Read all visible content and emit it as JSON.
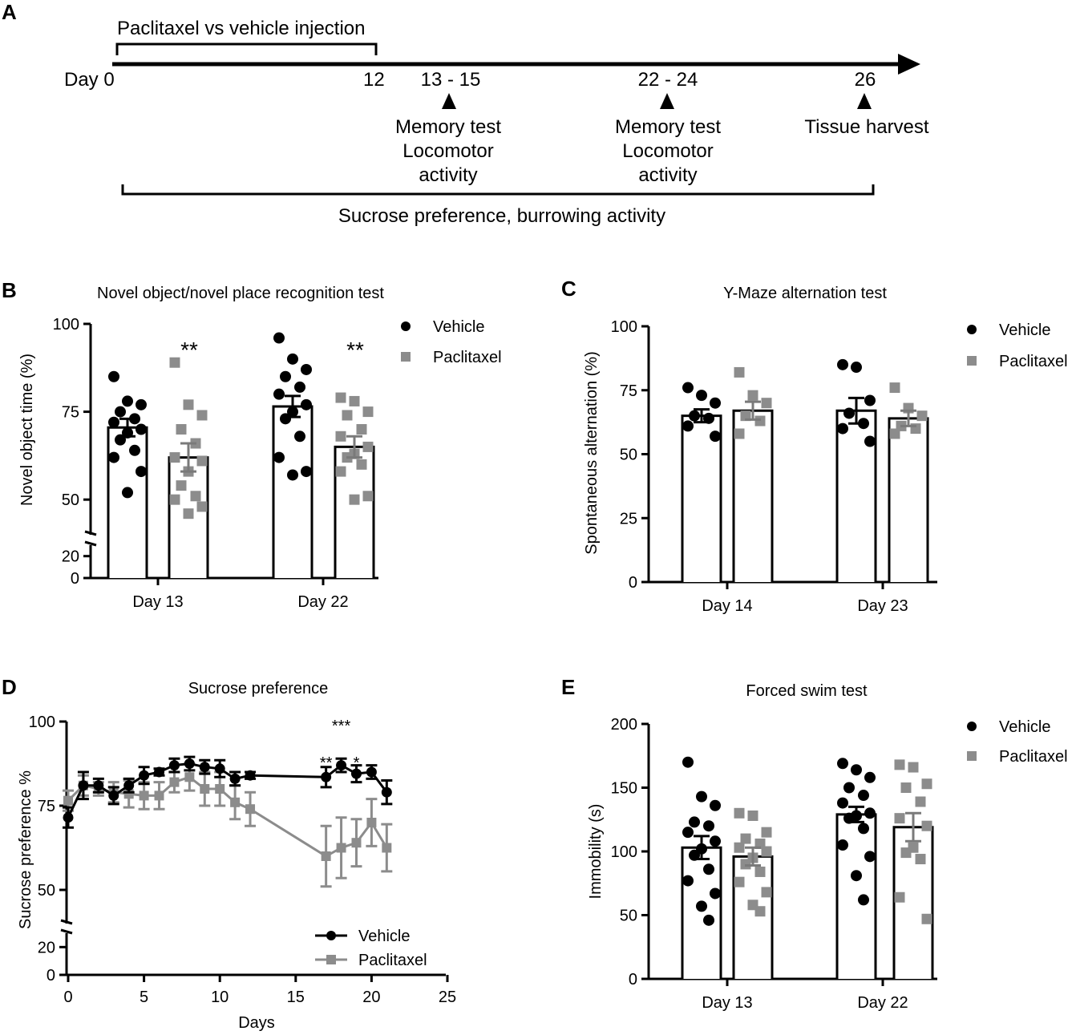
{
  "colors": {
    "vehicle": "#000000",
    "paclitaxel": "#8c8c8c"
  },
  "panel_letters": {
    "A": "A",
    "B": "B",
    "C": "C",
    "D": "D",
    "E": "E"
  },
  "timeline": {
    "top_label": "Paclitaxel vs vehicle injection",
    "day_label": "Day 0",
    "day12": "12",
    "markers": [
      {
        "days": "13 - 15",
        "lines": [
          "Memory test",
          "Locomotor",
          "activity"
        ]
      },
      {
        "days": "22 - 24",
        "lines": [
          "Memory test",
          "Locomotor",
          "activity"
        ]
      },
      {
        "days": "26",
        "lines": [
          "Tissue harvest"
        ]
      }
    ],
    "bottom_label": "Sucrose preference, burrowing activity"
  },
  "chart_data": [
    {
      "panel": "B",
      "type": "bar",
      "title": "Novel object/novel place recognition test",
      "ylabel": "Novel object time (%)",
      "xlabel": "",
      "ylim": [
        0,
        100
      ],
      "y_axis_break": [
        30,
        40
      ],
      "yticks": [
        0,
        20,
        50,
        75,
        100
      ],
      "categories": [
        "Day 13",
        "Day 22"
      ],
      "legend": [
        "Vehicle",
        "Paclitaxel"
      ],
      "significance": [
        "**",
        "**"
      ],
      "series": [
        {
          "name": "Vehicle",
          "values": [
            70.5,
            76.5
          ],
          "sem": [
            2.5,
            3
          ],
          "points": [
            [
              85,
              78,
              77,
              75,
              73,
              72,
              70,
              69,
              67,
              64,
              62,
              58,
              52
            ],
            [
              96,
              90,
              87,
              85,
              82,
              80,
              77,
              75,
              73,
              68,
              62,
              58,
              57
            ]
          ]
        },
        {
          "name": "Paclitaxel",
          "values": [
            62,
            65
          ],
          "sem": [
            4,
            3
          ],
          "points": [
            [
              89,
              77,
              74,
              70,
              66,
              62,
              61,
              58,
              54,
              51,
              50,
              48,
              46
            ],
            [
              79,
              78,
              75,
              74,
              70,
              68,
              65,
              63,
              62,
              60,
              58,
              51,
              50
            ]
          ]
        }
      ]
    },
    {
      "panel": "C",
      "type": "bar",
      "title": "Y-Maze alternation test",
      "ylabel": "Spontaneous alternation  (%)",
      "xlabel": "",
      "ylim": [
        0,
        100
      ],
      "yticks": [
        0,
        25,
        50,
        75,
        100
      ],
      "categories": [
        "Day 14",
        "Day 23"
      ],
      "legend": [
        "Vehicle",
        "Paclitaxel"
      ],
      "series": [
        {
          "name": "Vehicle",
          "values": [
            65,
            67
          ],
          "sem": [
            2.5,
            5
          ],
          "points": [
            [
              76,
              73,
              70,
              65,
              64,
              61,
              57
            ],
            [
              85,
              84,
              71,
              66,
              62,
              60,
              55
            ]
          ]
        },
        {
          "name": "Paclitaxel",
          "values": [
            67,
            64
          ],
          "sem": [
            3.5,
            3
          ],
          "points": [
            [
              82,
              73,
              70,
              65,
              63,
              58
            ],
            [
              76,
              68,
              65,
              61,
              60,
              58
            ]
          ]
        }
      ]
    },
    {
      "panel": "D",
      "type": "line",
      "title": "Sucrose preference",
      "xlabel": "Days",
      "ylabel": "Sucrose preference %",
      "xlim": [
        0,
        25
      ],
      "xticks": [
        0,
        5,
        10,
        15,
        20,
        25
      ],
      "ylim": [
        0,
        100
      ],
      "y_axis_break": [
        30,
        40
      ],
      "yticks": [
        0,
        20,
        50,
        75,
        100
      ],
      "legend": [
        "Vehicle",
        "Paclitaxel"
      ],
      "significance": [
        {
          "x": 17,
          "label": "**"
        },
        {
          "x": 18,
          "label": "***"
        },
        {
          "x": 19,
          "label": "*"
        }
      ],
      "series": [
        {
          "name": "Vehicle",
          "x": [
            0,
            1,
            2,
            3,
            4,
            5,
            6,
            7,
            8,
            9,
            10,
            11,
            12,
            17,
            18,
            19,
            20,
            21
          ],
          "y": [
            71.5,
            81,
            81,
            78,
            81,
            84,
            85,
            87,
            87.5,
            86.5,
            86,
            83,
            84,
            83.5,
            87,
            84.5,
            85,
            79
          ],
          "sem": [
            3,
            4,
            2,
            2.5,
            2,
            2.5,
            1,
            2,
            2,
            2,
            2.5,
            2,
            1,
            3,
            2,
            2.5,
            2,
            3.5
          ]
        },
        {
          "name": "Paclitaxel",
          "x": [
            0,
            1,
            2,
            3,
            4,
            5,
            6,
            7,
            8,
            9,
            10,
            11,
            12,
            17,
            18,
            19,
            20,
            21
          ],
          "y": [
            76.5,
            81,
            80,
            79,
            78.5,
            78,
            78,
            82,
            83.5,
            80,
            80,
            76,
            74,
            60,
            62.5,
            64,
            70,
            62.5
          ],
          "sem": [
            3,
            3,
            2,
            3,
            4,
            4,
            4,
            3,
            4,
            5,
            5,
            5,
            5,
            9,
            9,
            7,
            7,
            7
          ]
        }
      ]
    },
    {
      "panel": "E",
      "type": "bar",
      "title": "Forced swim test",
      "ylabel": "Immobility (s)",
      "xlabel": "",
      "ylim": [
        0,
        200
      ],
      "yticks": [
        0,
        50,
        100,
        150,
        200
      ],
      "categories": [
        "Day 13",
        "Day 22"
      ],
      "legend": [
        "Vehicle",
        "Paclitaxel"
      ],
      "series": [
        {
          "name": "Vehicle",
          "values": [
            103,
            129
          ],
          "sem": [
            9,
            6
          ],
          "points": [
            [
              170,
              143,
              136,
              123,
              120,
              115,
              108,
              102,
              97,
              86,
              77,
              67,
              57,
              46
            ],
            [
              169,
              164,
              158,
              150,
              144,
              138,
              130,
              128,
              126,
              118,
              105,
              96,
              81,
              62
            ]
          ]
        },
        {
          "name": "Paclitaxel",
          "values": [
            96,
            119
          ],
          "sem": [
            7,
            11
          ],
          "points": [
            [
              130,
              128,
              115,
              110,
              106,
              103,
              100,
              95,
              90,
              84,
              76,
              68,
              58,
              53
            ],
            [
              168,
              166,
              153,
              150,
              139,
              126,
              120,
              103,
              99,
              94,
              64,
              47
            ]
          ]
        }
      ]
    }
  ]
}
